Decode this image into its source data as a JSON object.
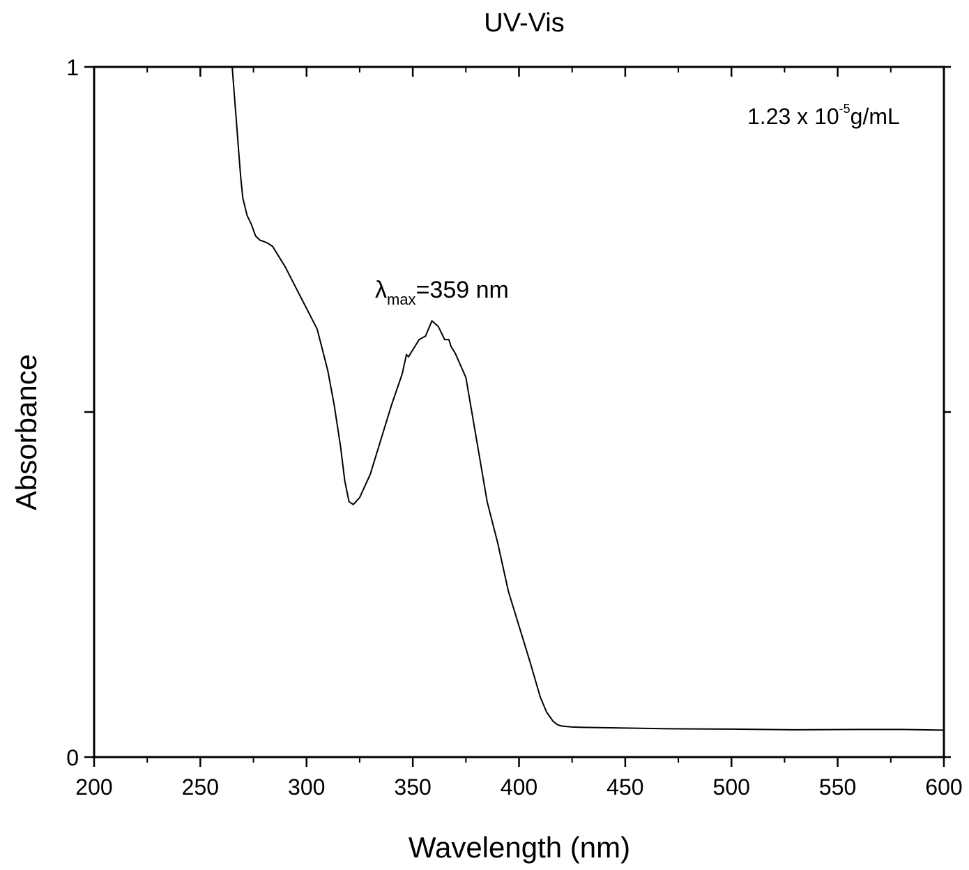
{
  "chart_data": {
    "type": "line",
    "title": "UV-Vis",
    "xlabel": "Wavelength (nm)",
    "ylabel": "Absorbance",
    "xlim": [
      200,
      600
    ],
    "ylim": [
      0,
      1
    ],
    "x_ticks": [
      200,
      250,
      300,
      350,
      400,
      450,
      500,
      550,
      600
    ],
    "x_tick_labels": [
      "200",
      "250",
      "300",
      "350",
      "400",
      "450",
      "500",
      "550",
      "600"
    ],
    "y_ticks": [
      0,
      0.5,
      1
    ],
    "y_tick_labels": [
      "0",
      "",
      "1"
    ],
    "grid": false,
    "annotations": {
      "concentration": {
        "base": "1.23 x 10",
        "exp": "-5",
        "unit": "g/mL"
      },
      "peak": {
        "symbol": "λ",
        "sub": "max",
        "text": "=359 nm"
      }
    },
    "series": [
      {
        "color": "#000000",
        "x": [
          265,
          266,
          267,
          268,
          269,
          270,
          272,
          274,
          276,
          278,
          280,
          282,
          284,
          286,
          290,
          295,
          300,
          305,
          310,
          313,
          316,
          318,
          320,
          322,
          325,
          330,
          335,
          340,
          345,
          347,
          348,
          350,
          353,
          356,
          359,
          362,
          365,
          367,
          368,
          370,
          375,
          380,
          385,
          390,
          395,
          400,
          405,
          410,
          413,
          416,
          418,
          420,
          425,
          430,
          440,
          450,
          470,
          500,
          530,
          560,
          580,
          600
        ],
        "y": [
          1.0,
          0.96,
          0.92,
          0.88,
          0.84,
          0.81,
          0.785,
          0.772,
          0.755,
          0.749,
          0.747,
          0.744,
          0.74,
          0.73,
          0.71,
          0.68,
          0.65,
          0.62,
          0.56,
          0.51,
          0.45,
          0.4,
          0.37,
          0.366,
          0.376,
          0.41,
          0.46,
          0.51,
          0.555,
          0.583,
          0.58,
          0.59,
          0.605,
          0.61,
          0.632,
          0.624,
          0.605,
          0.605,
          0.595,
          0.585,
          0.55,
          0.46,
          0.37,
          0.31,
          0.24,
          0.19,
          0.14,
          0.087,
          0.065,
          0.052,
          0.047,
          0.045,
          0.0435,
          0.043,
          0.0425,
          0.042,
          0.041,
          0.0405,
          0.0395,
          0.04,
          0.04,
          0.039
        ]
      }
    ]
  }
}
